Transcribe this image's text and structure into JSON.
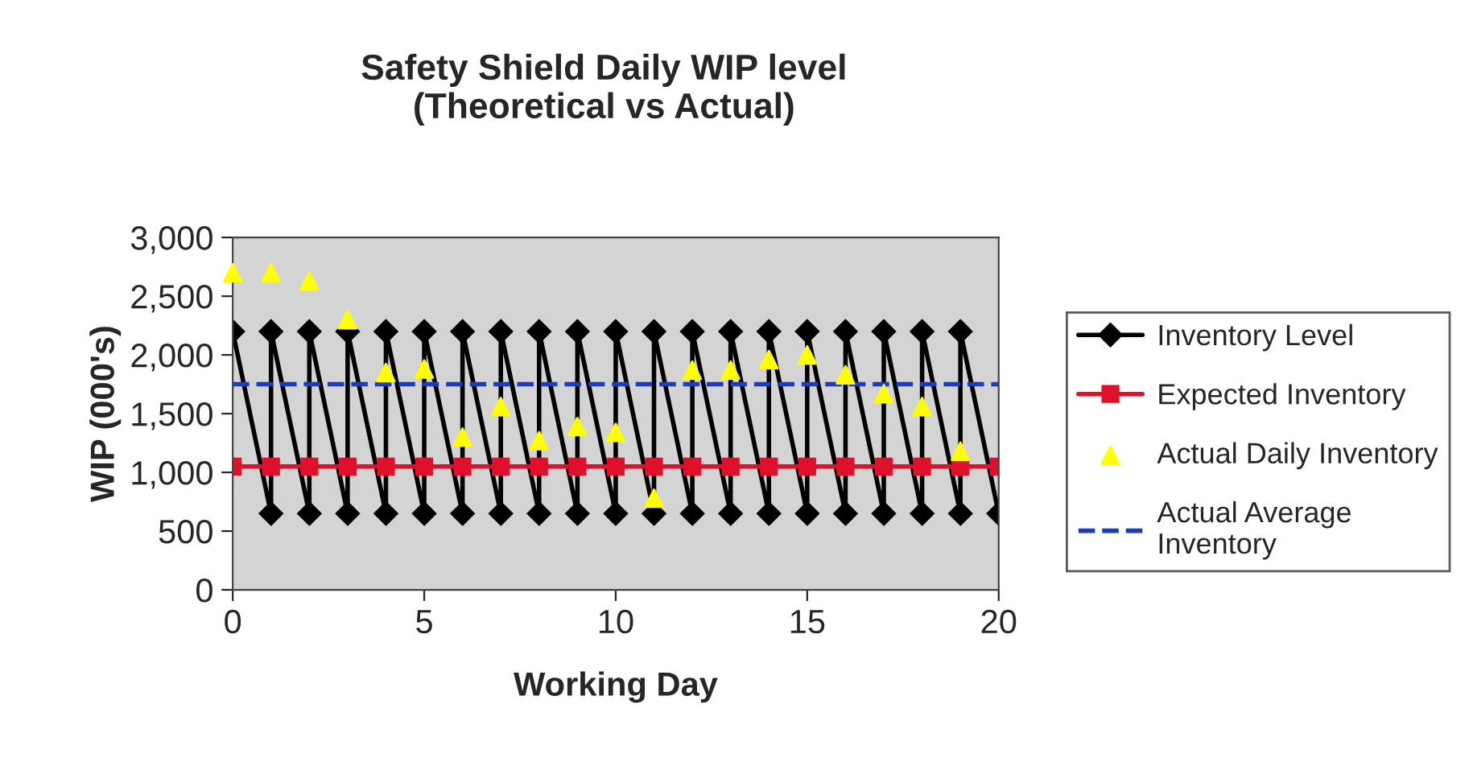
{
  "chart_data": {
    "type": "line",
    "title": "Safety Shield Daily WIP level\n(Theoretical vs Actual)",
    "xlabel": "Working Day",
    "ylabel": "WIP (000's)",
    "series": [
      {
        "name": "Inventory Level",
        "color": "#000000",
        "marker": "diamond",
        "line_style": "solid",
        "x": [
          0,
          1,
          1,
          2,
          2,
          3,
          3,
          4,
          4,
          5,
          5,
          6,
          6,
          7,
          7,
          8,
          8,
          9,
          9,
          10,
          10,
          11,
          11,
          12,
          12,
          13,
          13,
          14,
          14,
          15,
          15,
          16,
          16,
          17,
          17,
          18,
          18,
          19,
          19,
          20
        ],
        "values": [
          2200,
          650,
          2200,
          650,
          2200,
          650,
          2200,
          650,
          2200,
          650,
          2200,
          650,
          2200,
          650,
          2200,
          650,
          2200,
          650,
          2200,
          650,
          2200,
          650,
          2200,
          650,
          2200,
          650,
          2200,
          650,
          2200,
          650,
          2200,
          650,
          2200,
          650,
          2200,
          650,
          2200,
          650,
          2200,
          650
        ]
      },
      {
        "name": "Expected Inventory",
        "color": "#e0102a",
        "marker": "square",
        "line_style": "solid",
        "x": [
          0,
          1,
          2,
          3,
          4,
          5,
          6,
          7,
          8,
          9,
          10,
          11,
          12,
          13,
          14,
          15,
          16,
          17,
          18,
          19,
          20
        ],
        "values": [
          1050,
          1050,
          1050,
          1050,
          1050,
          1050,
          1050,
          1050,
          1050,
          1050,
          1050,
          1050,
          1050,
          1050,
          1050,
          1050,
          1050,
          1050,
          1050,
          1050,
          1050
        ]
      },
      {
        "name": "Actual Daily Inventory",
        "type": "scatter",
        "color": "#ffff00",
        "marker": "triangle",
        "x": [
          0,
          1,
          2,
          3,
          4,
          5,
          6,
          7,
          8,
          9,
          10,
          11,
          12,
          13,
          14,
          15,
          16,
          17,
          18,
          19
        ],
        "values": [
          2700,
          2700,
          2630,
          2300,
          1850,
          1880,
          1300,
          1560,
          1270,
          1390,
          1340,
          780,
          1870,
          1870,
          1960,
          2000,
          1830,
          1670,
          1560,
          1180
        ]
      },
      {
        "name": "Actual Average Inventory",
        "color": "#1a3cc0",
        "marker": "none",
        "line_style": "dashed",
        "x": [
          0,
          1,
          2,
          3,
          4,
          5,
          6,
          7,
          8,
          9,
          10,
          11,
          12,
          13,
          14,
          15,
          16,
          17,
          18,
          19,
          20
        ],
        "values": [
          1750,
          1750,
          1750,
          1750,
          1750,
          1750,
          1750,
          1750,
          1750,
          1750,
          1750,
          1750,
          1750,
          1750,
          1750,
          1750,
          1750,
          1750,
          1750,
          1750,
          1750
        ]
      }
    ],
    "xlim": [
      0,
      20
    ],
    "xticks": [
      0,
      5,
      10,
      15,
      20
    ],
    "ylim": [
      0,
      3000
    ],
    "yticks": [
      0,
      500,
      {
        "value": 1000,
        "label": "1,000"
      },
      {
        "value": 1500,
        "label": "1,500"
      },
      {
        "value": 2000,
        "label": "2,000"
      },
      {
        "value": 2500,
        "label": "2,500"
      },
      {
        "value": 3000,
        "label": "3,000"
      }
    ],
    "grid": false,
    "legend": "right"
  }
}
